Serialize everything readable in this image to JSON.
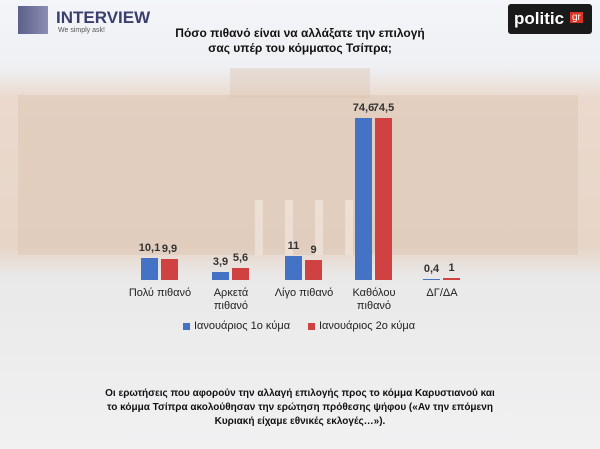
{
  "header": {
    "brand": "INTERVIEW",
    "slogan": "We simply ask!",
    "site": "politic",
    "site_suffix": "gr"
  },
  "chart_data": {
    "type": "bar",
    "title": "Πόσο πιθανό είναι να αλλάξατε την επιλογή σας υπέρ του κόμματος Τσίπρα;",
    "categories": [
      "Πολύ πιθανό",
      "Αρκετά πιθανό",
      "Λίγο πιθανό",
      "Καθόλου πιθανό",
      "ΔΓ/ΔΑ"
    ],
    "series": [
      {
        "name": "Ιανουάριος 1ο κύμα",
        "color": "#4472c4",
        "values": [
          10.1,
          3.9,
          11,
          74.6,
          0.4
        ],
        "value_labels": [
          "10,1",
          "3,9",
          "11",
          "74,6",
          "0,4"
        ]
      },
      {
        "name": "Ιανουάριος 2ο κύμα",
        "color": "#d04242",
        "values": [
          9.9,
          5.6,
          9,
          74.5,
          1
        ],
        "value_labels": [
          "9,9",
          "5,6",
          "9",
          "74,5",
          "1"
        ]
      }
    ],
    "legend": "bottom",
    "note": "Οι ερωτήσεις που αφορούν την αλλαγή επιλογής προς το κόμμα Καρυστιανού και το κόμμα Τσίπρα ακολούθησαν την ερώτηση πρόθεσης ψήφου («Αν την επόμενη Κυριακή είχαμε εθνικές εκλογές…»)."
  }
}
